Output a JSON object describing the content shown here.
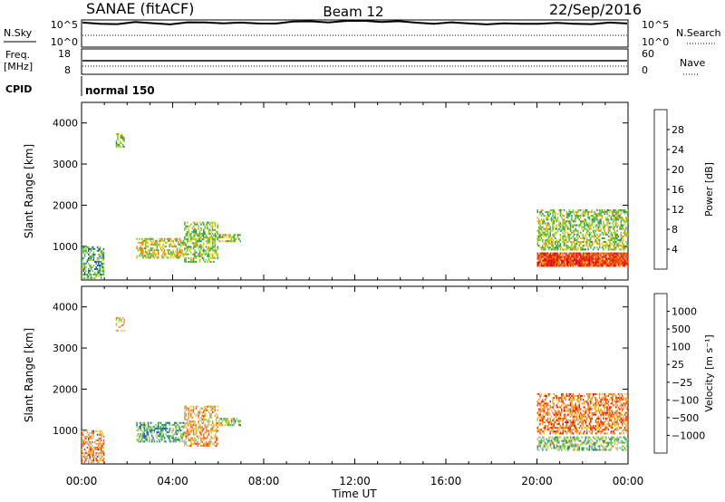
{
  "header": {
    "station": "SANAE (fitACF)",
    "beam": "Beam 12",
    "date": "22/Sep/2016"
  },
  "noise_panel": {
    "left_label": "N.Sky",
    "right_label": "N.Search",
    "ticks_left": [
      "10^5",
      "10^0"
    ],
    "ticks_right": [
      "10^5",
      "10^0"
    ],
    "noise_profile": [
      0.88,
      0.86,
      0.87,
      0.9,
      0.88,
      0.86,
      0.89,
      0.91,
      0.9,
      0.88,
      0.87,
      0.89,
      0.92,
      0.95,
      0.93,
      0.94,
      0.97,
      0.95,
      0.93,
      0.9,
      0.88,
      0.89,
      0.87,
      0.86,
      0.85,
      0.86,
      0.88,
      0.87,
      0.86,
      0.87,
      0.88,
      0.87
    ]
  },
  "freq_panel": {
    "left_label_1": "Freq.",
    "left_label_2": "[MHz]",
    "right_label": "Nave",
    "ticks_left": [
      "18",
      "8"
    ],
    "ticks_right": [
      "60",
      "0"
    ]
  },
  "cpid_panel": {
    "label": "CPID",
    "value": "normal 150"
  },
  "chart_data": [
    {
      "type": "heatmap",
      "name": "power",
      "ylabel": "Slant Range [km]",
      "yticks": [
        1000,
        2000,
        3000,
        4000
      ],
      "ylim": [
        180,
        4500
      ],
      "colorbar_label": "Power [dB]",
      "colorbar_ticks": [
        "4",
        "8",
        "12",
        "16",
        "20",
        "24",
        "28"
      ],
      "colorbar_colors": [
        "#1616e8",
        "#1f4fb0",
        "#2e8a5a",
        "#3fae4e",
        "#6ccf2a",
        "#d8cf1a",
        "#f0a010",
        "#f06a10",
        "#e83a0a",
        "#e01010"
      ],
      "regions": [
        {
          "t0": 0.0,
          "t1": 1.0,
          "r0": 200,
          "r1": 1000,
          "level": 0.35
        },
        {
          "t0": 1.5,
          "t1": 1.9,
          "r0": 3400,
          "r1": 3750,
          "level": 0.4
        },
        {
          "t0": 2.4,
          "t1": 4.5,
          "r0": 700,
          "r1": 1200,
          "level": 0.55
        },
        {
          "t0": 4.5,
          "t1": 6.0,
          "r0": 600,
          "r1": 1600,
          "level": 0.45
        },
        {
          "t0": 6.0,
          "t1": 7.0,
          "r0": 1100,
          "r1": 1300,
          "level": 0.45
        },
        {
          "t0": 20.0,
          "t1": 24.0,
          "r0": 500,
          "r1": 850,
          "level": 0.85
        },
        {
          "t0": 20.0,
          "t1": 24.0,
          "r0": 900,
          "r1": 1900,
          "level": 0.45
        }
      ]
    },
    {
      "type": "heatmap",
      "name": "velocity",
      "ylabel": "Slant Range [km]",
      "yticks": [
        1000,
        2000,
        3000,
        4000
      ],
      "ylim": [
        180,
        4500
      ],
      "colorbar_label": "Velocity [m s⁻¹]",
      "colorbar_ticks": [
        "1000",
        "500",
        "100",
        "25",
        "−25",
        "−100",
        "−500",
        "−1000"
      ],
      "colorbar_colors": [
        "#1a2fd0",
        "#1f5ab8",
        "#2a8a70",
        "#4cb84c",
        "#7fd23a",
        "#b8b8b8",
        "#f0c020",
        "#f0a020",
        "#f07820",
        "#f04010",
        "#e01010"
      ],
      "regions": [
        {
          "t0": 0.0,
          "t1": 1.0,
          "r0": 200,
          "r1": 1000,
          "level": 0.7
        },
        {
          "t0": 1.5,
          "t1": 1.9,
          "r0": 3400,
          "r1": 3750,
          "level": 0.6
        },
        {
          "t0": 2.4,
          "t1": 4.5,
          "r0": 700,
          "r1": 1200,
          "level": 0.35
        },
        {
          "t0": 4.5,
          "t1": 6.0,
          "r0": 600,
          "r1": 1600,
          "level": 0.65
        },
        {
          "t0": 6.0,
          "t1": 7.0,
          "r0": 1100,
          "r1": 1300,
          "level": 0.4
        },
        {
          "t0": 20.0,
          "t1": 24.0,
          "r0": 500,
          "r1": 850,
          "level": 0.4
        },
        {
          "t0": 20.0,
          "t1": 24.0,
          "r0": 900,
          "r1": 1900,
          "level": 0.75
        }
      ]
    }
  ],
  "x_axis": {
    "label": "Time UT",
    "ticks": [
      "00:00",
      "04:00",
      "08:00",
      "12:00",
      "16:00",
      "20:00",
      "00:00"
    ]
  }
}
